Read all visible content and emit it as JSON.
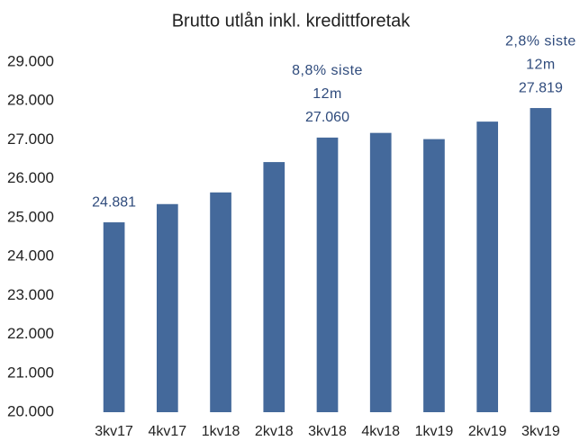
{
  "chart_data": {
    "type": "bar",
    "title": "Brutto utlån inkl. kredittforetak",
    "categories": [
      "3kv17",
      "4kv17",
      "1kv18",
      "2kv18",
      "3kv18",
      "4kv18",
      "1kv19",
      "2kv19",
      "3kv19"
    ],
    "values": [
      24881,
      25350,
      25650,
      26430,
      27060,
      27180,
      27020,
      27470,
      27819
    ],
    "value_labels": [
      "24.881",
      null,
      null,
      null,
      "27.060",
      null,
      null,
      null,
      "27.819"
    ],
    "annotations": [
      {
        "category": "3kv18",
        "lines": [
          "8,8% siste",
          "12m"
        ]
      },
      {
        "category": "3kv19",
        "lines": [
          "2,8% siste",
          "12m"
        ]
      }
    ],
    "color": "#44699b",
    "ylim": [
      20000,
      29000
    ],
    "yticks": [
      {
        "value": 20000,
        "label": "20.000"
      },
      {
        "value": 21000,
        "label": "21.000"
      },
      {
        "value": 22000,
        "label": "22.000"
      },
      {
        "value": 23000,
        "label": "23.000"
      },
      {
        "value": 24000,
        "label": "24.000"
      },
      {
        "value": 25000,
        "label": "25.000"
      },
      {
        "value": 26000,
        "label": "26.000"
      },
      {
        "value": 27000,
        "label": "27.000"
      },
      {
        "value": 28000,
        "label": "28.000"
      },
      {
        "value": 29000,
        "label": "29.000"
      }
    ],
    "grid": false
  }
}
